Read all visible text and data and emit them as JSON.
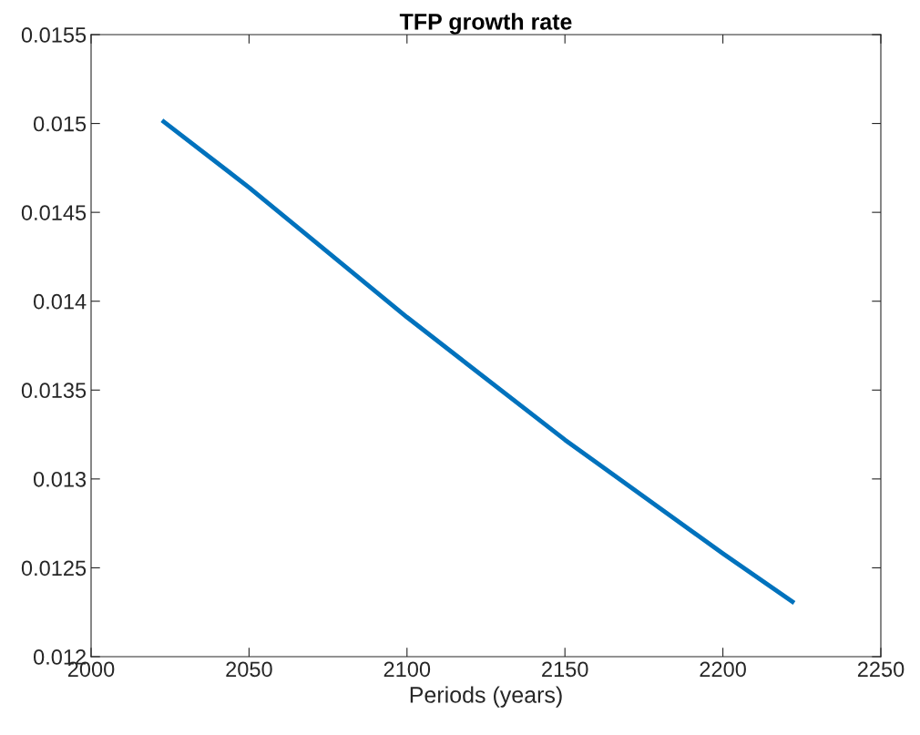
{
  "chart_data": {
    "type": "line",
    "title": "TFP growth rate",
    "xlabel": "Periods (years)",
    "x": [
      2023,
      2050,
      2100,
      2150,
      2200,
      2222
    ],
    "series": [
      {
        "color": "#0072bd",
        "values": [
          0.01501,
          0.01464,
          0.01391,
          0.01322,
          0.01258,
          0.01231
        ]
      }
    ],
    "xlim": [
      2000,
      2250
    ],
    "xticks": [
      2000,
      2050,
      2100,
      2150,
      2200,
      2250
    ],
    "ylim": [
      0.012,
      0.0155
    ],
    "yticks": [
      0.012,
      0.0125,
      0.013,
      0.0135,
      0.014,
      0.0145,
      0.015,
      0.0155
    ],
    "grid": false,
    "legend": false,
    "marker": "none",
    "line_style": "solid"
  }
}
